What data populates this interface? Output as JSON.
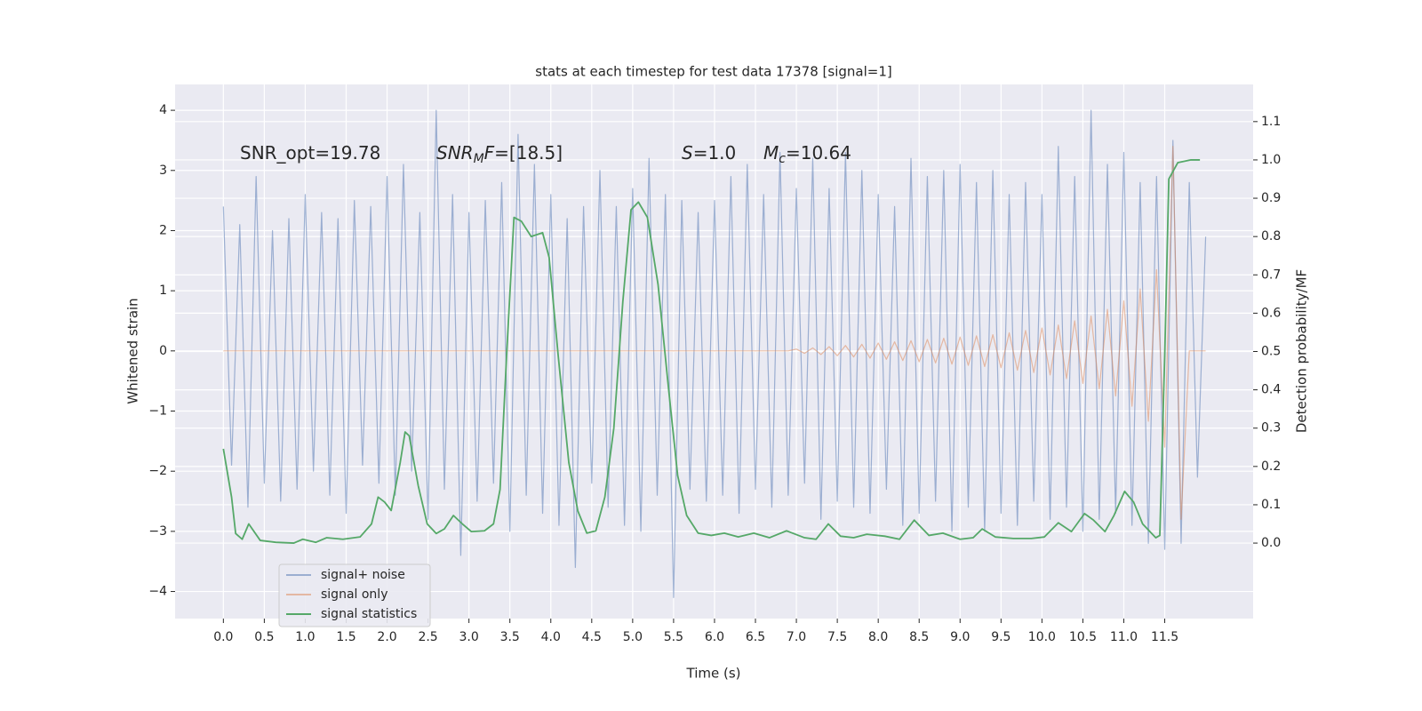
{
  "chart_data": {
    "type": "line",
    "title": "stats at each timestep for test data 17378 [signal=1]",
    "xlabel": "Time (s)",
    "ylabel": "Whitened strain",
    "y2label": "Detection probability/MF",
    "xlim": [
      -0.59,
      12.58
    ],
    "ylim": [
      -4.45,
      4.43
    ],
    "y2lim": [
      -0.197,
      1.197
    ],
    "xticks": [
      {
        "value": 0,
        "label": "0.0"
      },
      0.5,
      {
        "value": 1,
        "label": "1.0"
      },
      1.5,
      {
        "value": 2,
        "label": "2.0"
      },
      2.5,
      {
        "value": 3,
        "label": "3.0"
      },
      3.5,
      {
        "value": 4,
        "label": "4.0"
      },
      4.5,
      {
        "value": 5,
        "label": "5.0"
      },
      5.5,
      {
        "value": 6,
        "label": "6.0"
      },
      6.5,
      {
        "value": 7,
        "label": "7.0"
      },
      7.5,
      {
        "value": 8,
        "label": "8.0"
      },
      8.5,
      {
        "value": 9,
        "label": "9.0"
      },
      9.5,
      {
        "value": 10,
        "label": "10.0"
      },
      10.5,
      {
        "value": 11,
        "label": "11.0"
      },
      11.5
    ],
    "yticks": [
      {
        "value": -4,
        "label": "−4"
      },
      {
        "value": -3,
        "label": "−3"
      },
      {
        "value": -2,
        "label": "−2"
      },
      {
        "value": -1,
        "label": "−1"
      },
      0,
      1,
      2,
      3,
      4
    ],
    "y2ticks": [
      {
        "value": 0,
        "label": "0.0"
      },
      0.1,
      0.2,
      0.3,
      0.4,
      0.5,
      0.6,
      0.7,
      0.8,
      0.9,
      {
        "value": 1,
        "label": "1.0"
      },
      1.1
    ],
    "grid": true,
    "legend": "lower left",
    "annotations": [
      [
        {
          "text": "SNR_opt=19.78",
          "style": "normal"
        }
      ],
      [
        {
          "text": "SNR",
          "style": "italic"
        },
        {
          "text": "M",
          "style": "italic-sub"
        },
        {
          "text": "F",
          "style": "italic"
        },
        {
          "text": "=[18.5]",
          "style": "normal"
        }
      ],
      [
        {
          "text": "S",
          "style": "italic"
        },
        {
          "text": "=1.0",
          "style": "normal"
        }
      ],
      [
        {
          "text": "M",
          "style": "italic"
        },
        {
          "text": "c",
          "style": "italic-sub"
        },
        {
          "text": "=10.64",
          "style": "normal"
        }
      ]
    ],
    "series": [
      {
        "name": "signal+ noise",
        "color": "#4c72b0",
        "axis": "y",
        "x": [
          0,
          0.1,
          0.2,
          0.3,
          0.4,
          0.5,
          0.6,
          0.7,
          0.8,
          0.9,
          1,
          1.1,
          1.2,
          1.3,
          1.4,
          1.5,
          1.6,
          1.7,
          1.8,
          1.9,
          2,
          2.1,
          2.2,
          2.3,
          2.4,
          2.5,
          2.6,
          2.7,
          2.8,
          2.9,
          3,
          3.1,
          3.2,
          3.3,
          3.4,
          3.5,
          3.6,
          3.7,
          3.8,
          3.9,
          4,
          4.1,
          4.2,
          4.3,
          4.4,
          4.5,
          4.6,
          4.7,
          4.8,
          4.9,
          5,
          5.1,
          5.2,
          5.3,
          5.4,
          5.5,
          5.6,
          5.7,
          5.8,
          5.9,
          6,
          6.1,
          6.2,
          6.3,
          6.4,
          6.5,
          6.6,
          6.7,
          6.8,
          6.9,
          7,
          7.1,
          7.2,
          7.3,
          7.4,
          7.5,
          7.6,
          7.7,
          7.8,
          7.9,
          8,
          8.1,
          8.2,
          8.3,
          8.4,
          8.5,
          8.6,
          8.7,
          8.8,
          8.9,
          9,
          9.1,
          9.2,
          9.3,
          9.4,
          9.5,
          9.6,
          9.7,
          9.8,
          9.9,
          10,
          10.1,
          10.2,
          10.3,
          10.4,
          10.5,
          10.6,
          10.7,
          10.8,
          10.9,
          11,
          11.1,
          11.2,
          11.3,
          11.4,
          11.5,
          11.6,
          11.7,
          11.8,
          11.9,
          12
        ],
        "values": [
          2.4,
          -1.9,
          2.1,
          -2.6,
          2.9,
          -2.2,
          2.0,
          -2.5,
          2.2,
          -2.3,
          2.6,
          -2.0,
          2.3,
          -2.4,
          2.2,
          -2.7,
          2.5,
          -1.9,
          2.4,
          -2.2,
          2.9,
          -2.4,
          3.1,
          -2.0,
          2.3,
          -2.8,
          4.0,
          -2.3,
          2.6,
          -3.4,
          2.3,
          -2.5,
          2.5,
          -2.2,
          2.8,
          -3.0,
          3.6,
          -2.4,
          3.1,
          -2.7,
          2.6,
          -2.9,
          2.2,
          -3.6,
          2.4,
          -2.2,
          3.0,
          -2.6,
          2.4,
          -2.9,
          2.7,
          -3.0,
          3.2,
          -2.4,
          2.6,
          -4.1,
          2.5,
          -2.3,
          2.3,
          -2.5,
          2.5,
          -2.4,
          2.9,
          -2.7,
          3.1,
          -2.3,
          2.6,
          -2.6,
          3.3,
          -2.4,
          2.7,
          -2.2,
          3.2,
          -2.8,
          2.7,
          -2.5,
          3.3,
          -2.6,
          3.0,
          -2.7,
          2.6,
          -2.3,
          2.4,
          -2.9,
          3.2,
          -2.7,
          2.9,
          -2.5,
          3.0,
          -3.0,
          3.1,
          -2.6,
          2.8,
          -3.0,
          3.0,
          -2.7,
          2.6,
          -2.9,
          2.8,
          -2.5,
          2.6,
          -2.8,
          3.4,
          -2.6,
          2.9,
          -3.0,
          4.0,
          -2.8,
          3.1,
          -2.7,
          3.3,
          -2.9,
          2.8,
          -3.2,
          2.9,
          -3.3,
          3.5,
          -3.2,
          2.8,
          -2.1,
          1.9
        ]
      },
      {
        "name": "signal only",
        "color": "#dd8452",
        "axis": "y",
        "x": [
          0,
          6.9,
          7,
          7.1,
          7.2,
          7.3,
          7.4,
          7.5,
          7.6,
          7.7,
          7.8,
          7.9,
          8,
          8.1,
          8.2,
          8.3,
          8.4,
          8.5,
          8.6,
          8.7,
          8.8,
          8.9,
          9,
          9.1,
          9.2,
          9.3,
          9.4,
          9.5,
          9.6,
          9.7,
          9.8,
          9.9,
          10,
          10.1,
          10.2,
          10.3,
          10.4,
          10.5,
          10.6,
          10.7,
          10.8,
          10.9,
          11,
          11.1,
          11.2,
          11.3,
          11.4,
          11.5,
          11.6,
          11.7,
          11.8,
          12
        ],
        "values": [
          0,
          0,
          0.03,
          -0.04,
          0.05,
          -0.06,
          0.07,
          -0.08,
          0.09,
          -0.1,
          0.11,
          -0.12,
          0.13,
          -0.14,
          0.15,
          -0.16,
          0.17,
          -0.18,
          0.19,
          -0.2,
          0.21,
          -0.22,
          0.23,
          -0.24,
          0.25,
          -0.26,
          0.27,
          -0.28,
          0.3,
          -0.32,
          0.34,
          -0.36,
          0.38,
          -0.4,
          0.43,
          -0.46,
          0.5,
          -0.54,
          0.58,
          -0.63,
          0.69,
          -0.75,
          0.83,
          -0.92,
          1.03,
          -1.17,
          1.35,
          -1.6,
          3.4,
          -2.8,
          0,
          0
        ]
      },
      {
        "name": "signal statistics",
        "color": "#55a868",
        "axis": "y2",
        "x": [
          0,
          0.1,
          0.15,
          0.23,
          0.31,
          0.45,
          0.64,
          0.86,
          0.97,
          1.13,
          1.26,
          1.46,
          1.67,
          1.81,
          1.89,
          1.97,
          2.05,
          2.16,
          2.22,
          2.27,
          2.38,
          2.49,
          2.6,
          2.7,
          2.81,
          2.92,
          3.03,
          3.19,
          3.3,
          3.38,
          3.46,
          3.55,
          3.64,
          3.76,
          3.9,
          3.98,
          4.09,
          4.22,
          4.33,
          4.44,
          4.55,
          4.66,
          4.77,
          4.88,
          4.98,
          5.07,
          5.18,
          5.31,
          5.44,
          5.55,
          5.66,
          5.8,
          5.96,
          6.12,
          6.29,
          6.48,
          6.67,
          6.88,
          7.1,
          7.24,
          7.39,
          7.54,
          7.7,
          7.86,
          8.08,
          8.26,
          8.44,
          8.62,
          8.79,
          9.0,
          9.16,
          9.27,
          9.43,
          9.65,
          9.87,
          10.03,
          10.2,
          10.36,
          10.52,
          10.63,
          10.77,
          10.88,
          11.01,
          11.12,
          11.23,
          11.39,
          11.44,
          11.5,
          11.55,
          11.66,
          11.82,
          11.93
        ],
        "values": [
          0.246,
          0.12,
          0.025,
          0.01,
          0.05,
          0.007,
          0.002,
          0,
          0.01,
          0.002,
          0.014,
          0.01,
          0.016,
          0.05,
          0.12,
          0.107,
          0.085,
          0.21,
          0.29,
          0.28,
          0.15,
          0.05,
          0.025,
          0.037,
          0.072,
          0.05,
          0.03,
          0.032,
          0.05,
          0.14,
          0.49,
          0.85,
          0.84,
          0.8,
          0.81,
          0.745,
          0.49,
          0.21,
          0.084,
          0.026,
          0.032,
          0.12,
          0.3,
          0.63,
          0.87,
          0.89,
          0.85,
          0.675,
          0.4,
          0.176,
          0.072,
          0.026,
          0.02,
          0.026,
          0.016,
          0.026,
          0.014,
          0.032,
          0.014,
          0.01,
          0.05,
          0.018,
          0.014,
          0.023,
          0.018,
          0.01,
          0.06,
          0.02,
          0.026,
          0.01,
          0.014,
          0.037,
          0.016,
          0.012,
          0.012,
          0.016,
          0.053,
          0.03,
          0.077,
          0.06,
          0.03,
          0.072,
          0.135,
          0.107,
          0.05,
          0.014,
          0.02,
          0.49,
          0.95,
          0.993,
          1.0,
          1.0
        ]
      }
    ]
  }
}
